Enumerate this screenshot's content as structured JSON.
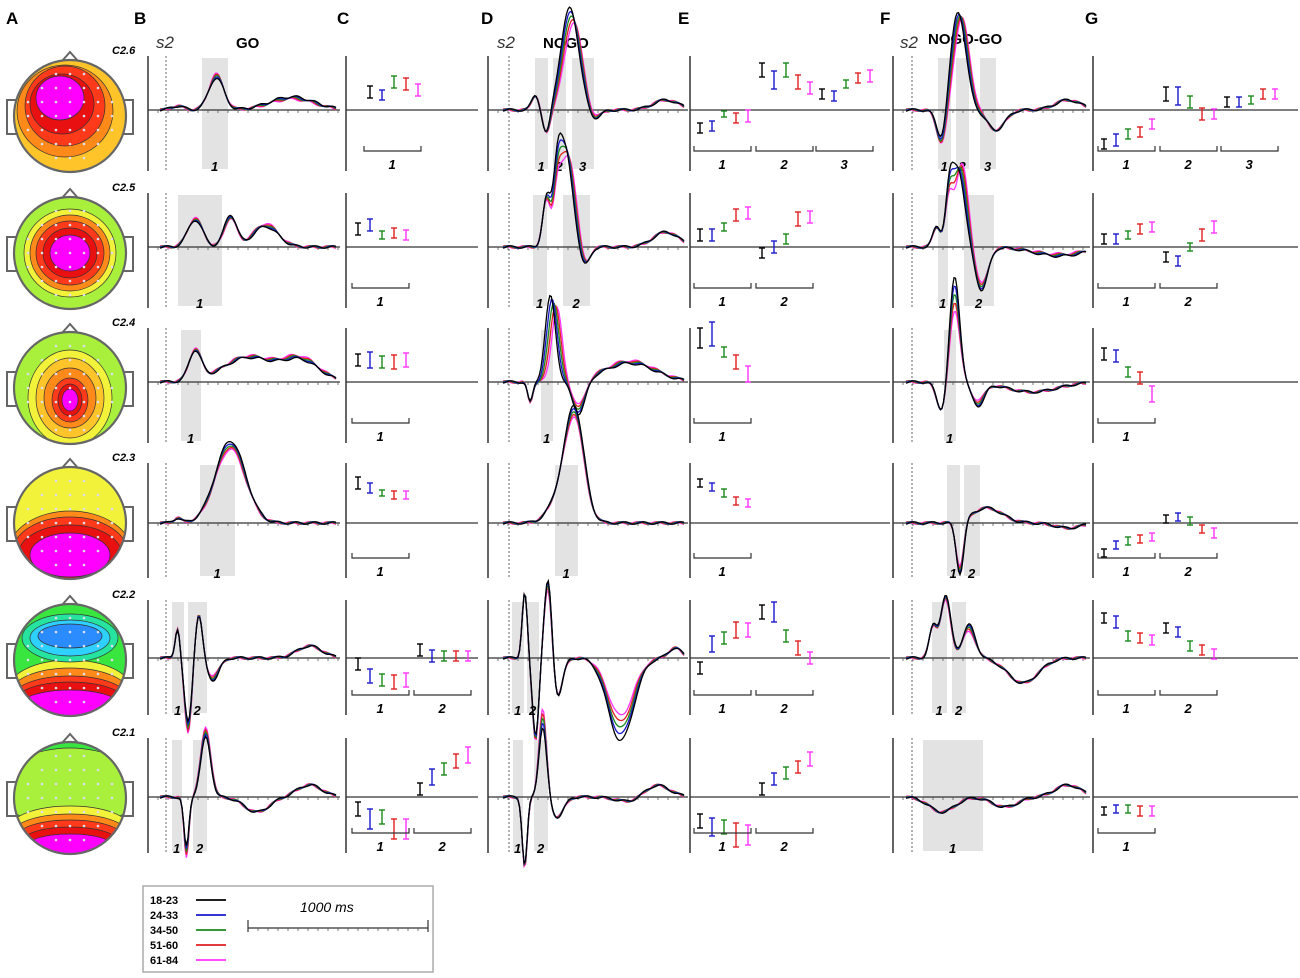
{
  "panel_letters": [
    "A",
    "B",
    "C",
    "D",
    "E",
    "F",
    "G"
  ],
  "headers": {
    "go": "GO",
    "nogo": "NOGO",
    "nogo_go": "NOGO-GO",
    "stim": "s2"
  },
  "legend": {
    "timescale": "1000 ms",
    "groups": [
      {
        "label": "18-23",
        "color": "#000000"
      },
      {
        "label": "24-33",
        "color": "#1a1acc"
      },
      {
        "label": "34-50",
        "color": "#1a8a1a"
      },
      {
        "label": "51-60",
        "color": "#e02020"
      },
      {
        "label": "61-84",
        "color": "#ff33ff"
      }
    ]
  },
  "rows": [
    {
      "component": "C2.6",
      "map": "c26",
      "b_windows": [
        "1"
      ],
      "d_windows": [
        "1",
        "2",
        "3"
      ],
      "f_windows": [
        "1",
        "2",
        "3"
      ],
      "c_groups": [
        "1"
      ],
      "e_groups": [
        "1",
        "2",
        "3"
      ],
      "g_groups": [
        "1",
        "2",
        "3"
      ]
    },
    {
      "component": "C2.5",
      "map": "c25",
      "b_windows": [
        "1"
      ],
      "d_windows": [
        "1",
        "2"
      ],
      "f_windows": [
        "1",
        "2"
      ],
      "c_groups": [
        "1"
      ],
      "e_groups": [
        "1",
        "2"
      ],
      "g_groups": [
        "1",
        "2"
      ]
    },
    {
      "component": "C2.4",
      "map": "c24",
      "b_windows": [
        "1"
      ],
      "d_windows": [
        "1"
      ],
      "f_windows": [
        "1"
      ],
      "c_groups": [
        "1"
      ],
      "e_groups": [
        "1"
      ],
      "g_groups": [
        "1"
      ]
    },
    {
      "component": "C2.3",
      "map": "c23",
      "b_windows": [
        "1"
      ],
      "d_windows": [
        "1"
      ],
      "f_windows": [
        "1",
        "2"
      ],
      "c_groups": [
        "1"
      ],
      "e_groups": [
        "1"
      ],
      "g_groups": [
        "1",
        "2"
      ]
    },
    {
      "component": "C2.2",
      "map": "c22",
      "b_windows": [
        "1",
        "2"
      ],
      "d_windows": [
        "1",
        "2"
      ],
      "f_windows": [
        "1",
        "2"
      ],
      "c_groups": [
        "1",
        "2"
      ],
      "e_groups": [
        "1",
        "2"
      ],
      "g_groups": [
        "1",
        "2"
      ]
    },
    {
      "component": "C2.1",
      "map": "c21",
      "b_windows": [
        "1",
        "2"
      ],
      "d_windows": [
        "1",
        "2"
      ],
      "f_windows": [
        "1"
      ],
      "c_groups": [
        "1",
        "2"
      ],
      "e_groups": [
        "1",
        "2"
      ],
      "g_groups": [
        "1"
      ]
    }
  ],
  "colors": {
    "map_palette": [
      "#0000c8",
      "#2a8cff",
      "#2ed0ff",
      "#27e3a0",
      "#39e640",
      "#a8f03c",
      "#f2f23a",
      "#ffc42a",
      "#ff8a1a",
      "#ff3a1a",
      "#e81010",
      "#ff00ff"
    ],
    "shade": "#e3e3e3",
    "axis": "#333333"
  }
}
